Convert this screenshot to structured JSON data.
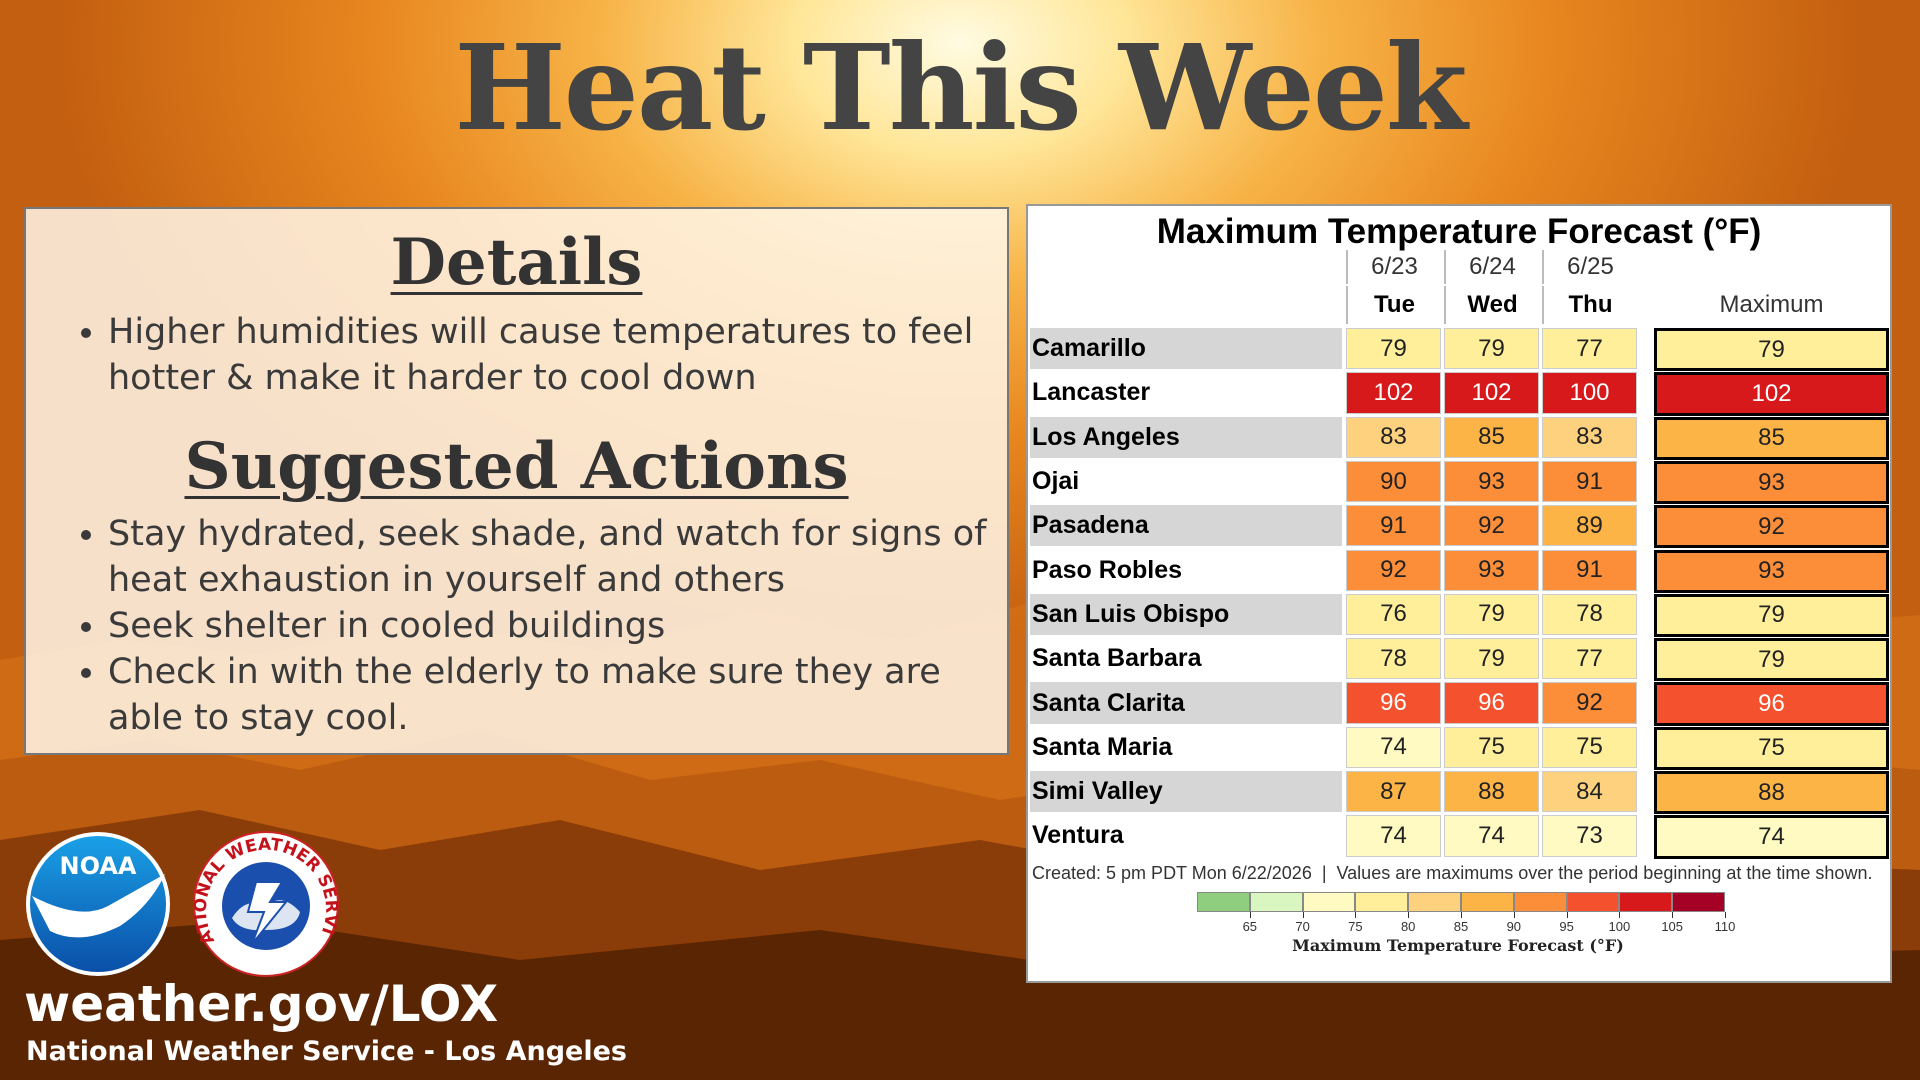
{
  "title": "Heat This Week",
  "details": {
    "heading": "Details",
    "bullets": [
      "Higher humidities will cause temperatures to feel hotter & make it harder to cool down"
    ]
  },
  "actions": {
    "heading": "Suggested Actions",
    "bullets": [
      "Stay hydrated, seek shade, and watch for signs of heat exhaustion in yourself and others",
      "Seek shelter in cooled buildings",
      "Check in with the elderly to make sure they are able to stay cool."
    ]
  },
  "table": {
    "title": "Maximum Temperature Forecast (°F)",
    "dates": [
      "6/23",
      "6/24",
      "6/25"
    ],
    "days": [
      "Tue",
      "Wed",
      "Thu"
    ],
    "max_header": "Maximum",
    "rows": [
      [
        "Camarillo",
        79,
        79,
        77,
        79
      ],
      [
        "Lancaster",
        102,
        102,
        100,
        102
      ],
      [
        "Los Angeles",
        83,
        85,
        83,
        85
      ],
      [
        "Ojai",
        90,
        93,
        91,
        93
      ],
      [
        "Pasadena",
        91,
        92,
        89,
        92
      ],
      [
        "Paso Robles",
        92,
        93,
        91,
        93
      ],
      [
        "San Luis Obispo",
        76,
        79,
        78,
        79
      ],
      [
        "Santa Barbara",
        78,
        79,
        77,
        79
      ],
      [
        "Santa Clarita",
        96,
        96,
        92,
        96
      ],
      [
        "Santa Maria",
        74,
        75,
        75,
        75
      ],
      [
        "Simi Valley",
        87,
        88,
        84,
        88
      ],
      [
        "Ventura",
        74,
        74,
        73,
        74
      ]
    ],
    "footer": "Created: 5 pm PDT Mon 6/22/2026  |  Values are maximums over the period beginning at the time shown."
  },
  "legend": {
    "title": "Maximum Temperature Forecast (°F)",
    "ticks": [
      65,
      70,
      75,
      80,
      85,
      90,
      95,
      100,
      105,
      110
    ],
    "colors": [
      "#8fce7f",
      "#d9f5c0",
      "#fffac2",
      "#ffee9a",
      "#fdd17e",
      "#fdb446",
      "#fc8e3a",
      "#f4512f",
      "#d7191c",
      "#a50026"
    ]
  },
  "logos": {
    "noaa": "NOAA",
    "nws": "NATIONAL WEATHER SERVICE"
  },
  "footer": {
    "url": "weather.gov/LOX",
    "office": "National Weather Service - Los Angeles"
  }
}
